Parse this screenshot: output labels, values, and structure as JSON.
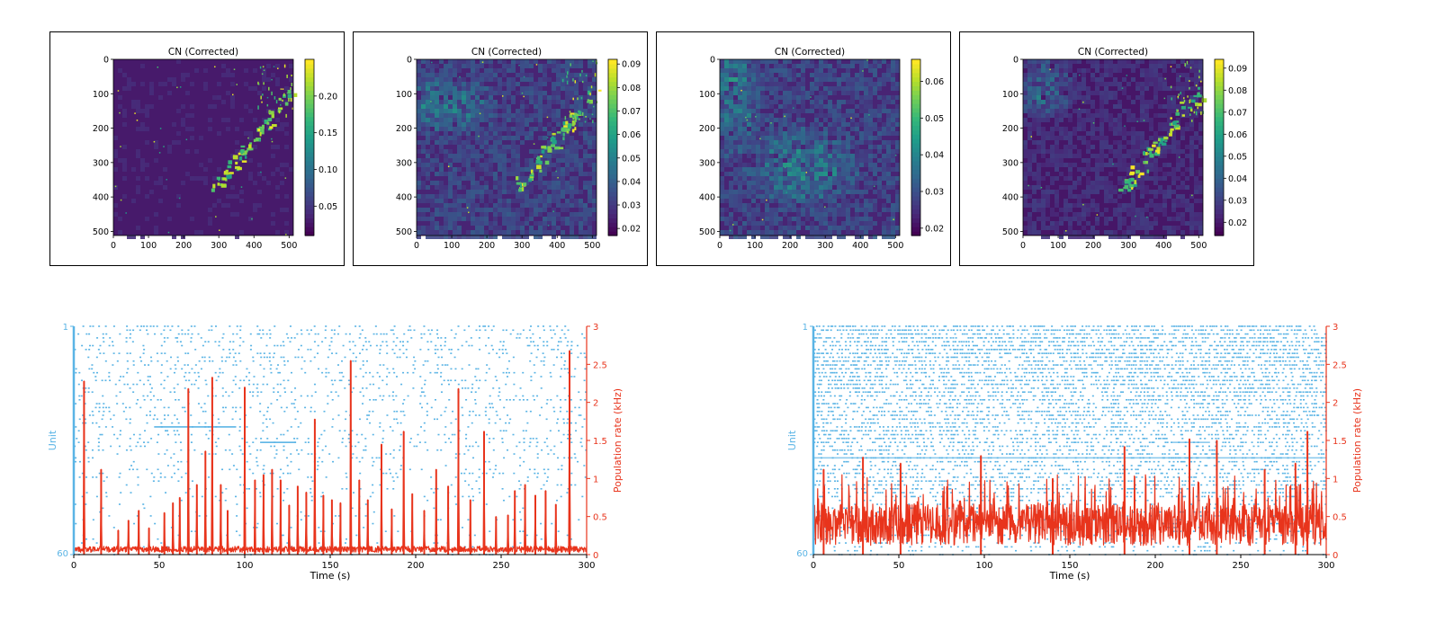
{
  "chart_data": [
    {
      "type": "heatmap",
      "title": "CN (Corrected)",
      "xlim": [
        0,
        512
      ],
      "ylim": [
        512,
        0
      ],
      "xticks": [
        "0",
        "100",
        "200",
        "300",
        "400",
        "500"
      ],
      "yticks": [
        "0",
        "100",
        "200",
        "300",
        "400",
        "500"
      ],
      "colorbar": {
        "colormap": "viridis",
        "ticks": [
          "0.05",
          "0.10",
          "0.15",
          "0.20"
        ],
        "range": [
          0.01,
          0.25
        ]
      }
    },
    {
      "type": "heatmap",
      "title": "CN (Corrected)",
      "xlim": [
        0,
        512
      ],
      "ylim": [
        512,
        0
      ],
      "xticks": [
        "0",
        "100",
        "200",
        "300",
        "400",
        "500"
      ],
      "yticks": [
        "0",
        "100",
        "200",
        "300",
        "400",
        "500"
      ],
      "colorbar": {
        "colormap": "viridis",
        "ticks": [
          "0.02",
          "0.03",
          "0.04",
          "0.05",
          "0.06",
          "0.07",
          "0.08",
          "0.09"
        ],
        "range": [
          0.017,
          0.092
        ]
      }
    },
    {
      "type": "heatmap",
      "title": "CN (Corrected)",
      "xlim": [
        0,
        512
      ],
      "ylim": [
        512,
        0
      ],
      "xticks": [
        "0",
        "100",
        "200",
        "300",
        "400",
        "500"
      ],
      "yticks": [
        "0",
        "100",
        "200",
        "300",
        "400",
        "500"
      ],
      "colorbar": {
        "colormap": "viridis",
        "ticks": [
          "0.02",
          "0.03",
          "0.04",
          "0.05",
          "0.06"
        ],
        "range": [
          0.018,
          0.066
        ]
      }
    },
    {
      "type": "heatmap",
      "title": "CN (Corrected)",
      "xlim": [
        0,
        512
      ],
      "ylim": [
        512,
        0
      ],
      "xticks": [
        "0",
        "100",
        "200",
        "300",
        "400",
        "500"
      ],
      "yticks": [
        "0",
        "100",
        "200",
        "300",
        "400",
        "500"
      ],
      "colorbar": {
        "colormap": "viridis",
        "ticks": [
          "0.02",
          "0.03",
          "0.04",
          "0.05",
          "0.06",
          "0.07",
          "0.08",
          "0.09"
        ],
        "range": [
          0.014,
          0.094
        ]
      }
    },
    {
      "type": "line",
      "xlabel": "Time (s)",
      "ylabel_left": "Unit",
      "ylabel_right": "Population rate (kHz)",
      "xlim": [
        0,
        300
      ],
      "xticks": [
        "0",
        "50",
        "100",
        "150",
        "200",
        "250",
        "300"
      ],
      "unit_range": [
        1,
        60
      ],
      "unit_ticks": [
        "1",
        "60"
      ],
      "ylim_right": [
        0,
        3
      ],
      "yticks_right": [
        "0",
        "0.5",
        "1",
        "1.5",
        "2",
        "2.5",
        "3"
      ],
      "raster_color": "#5ab4e5",
      "rate_color": "#e8341c",
      "peaks": {
        "t": [
          6,
          16,
          26,
          32,
          38,
          44,
          53,
          58,
          62,
          67,
          72,
          77,
          81,
          86,
          90,
          100,
          106,
          111,
          116,
          121,
          126,
          131,
          136,
          141,
          146,
          151,
          156,
          162,
          167,
          172,
          180,
          186,
          193,
          198,
          205,
          212,
          219,
          225,
          232,
          240,
          247,
          254,
          258,
          264,
          270,
          276,
          282,
          290
        ],
        "rate": [
          2.28,
          1.12,
          0.32,
          0.45,
          0.58,
          0.35,
          0.55,
          0.68,
          0.75,
          2.18,
          0.92,
          1.36,
          2.33,
          0.92,
          0.58,
          2.2,
          0.98,
          1.05,
          1.12,
          0.98,
          0.65,
          0.9,
          0.82,
          1.78,
          0.78,
          0.72,
          0.68,
          2.55,
          0.98,
          0.72,
          1.45,
          0.6,
          1.62,
          0.8,
          0.58,
          1.12,
          0.9,
          2.18,
          0.72,
          1.62,
          0.5,
          0.52,
          0.84,
          0.92,
          0.78,
          0.84,
          0.66,
          2.68
        ]
      }
    },
    {
      "type": "line",
      "xlabel": "Time (s)",
      "ylabel_left": "Unit",
      "ylabel_right": "Population rate (kHz)",
      "xlim": [
        0,
        300
      ],
      "xticks": [
        "0",
        "50",
        "100",
        "150",
        "200",
        "250",
        "300"
      ],
      "unit_range": [
        1,
        60
      ],
      "unit_ticks": [
        "1",
        "60"
      ],
      "ylim_right": [
        0,
        3
      ],
      "yticks_right": [
        "0",
        "0.5",
        "1",
        "1.5",
        "2",
        "2.5",
        "3"
      ],
      "raster_color": "#5ab4e5",
      "rate_color": "#e8341c",
      "peaks": {
        "t": [
          6,
          29,
          51,
          98,
          140,
          182,
          220,
          236,
          264,
          282,
          289
        ],
        "rate": [
          1.12,
          1.28,
          1.2,
          1.3,
          1.0,
          1.42,
          1.52,
          1.5,
          1.12,
          1.2,
          1.62
        ]
      }
    }
  ]
}
